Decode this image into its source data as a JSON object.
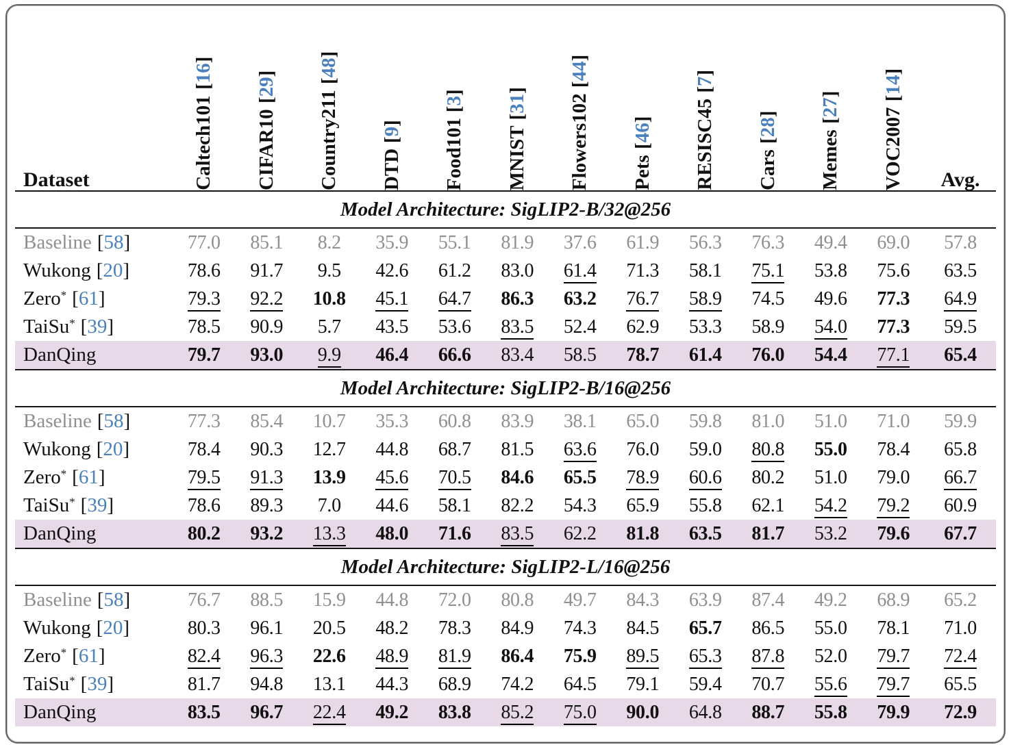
{
  "colors": {
    "citation_blue": "#4a80bb",
    "muted_gray": "#8f8f8f",
    "highlight_pink": "#e8d9e8",
    "rule_black": "#151515",
    "border_gray": "#5f5f5f"
  },
  "punctuation": {
    "cite_open": "[",
    "cite_close": "]"
  },
  "header": {
    "dataset_label": "Dataset",
    "avg_label": "Avg.",
    "columns": [
      {
        "name": "Caltech101",
        "cite": "16"
      },
      {
        "name": "CIFAR10",
        "cite": "29"
      },
      {
        "name": "Country211",
        "cite": "48"
      },
      {
        "name": "DTD",
        "cite": "9"
      },
      {
        "name": "Food101",
        "cite": "3"
      },
      {
        "name": "MNIST",
        "cite": "31"
      },
      {
        "name": "Flowers102",
        "cite": "44"
      },
      {
        "name": "Pets",
        "cite": "46"
      },
      {
        "name": "RESISC45",
        "cite": "7"
      },
      {
        "name": "Cars",
        "cite": "28"
      },
      {
        "name": "Memes",
        "cite": "27"
      },
      {
        "name": "VOC2007",
        "cite": "14"
      }
    ]
  },
  "sections": [
    {
      "title": "Model Architecture: SigLIP2-B/32@256",
      "rows": [
        {
          "label": "Baseline",
          "cite": "58",
          "muted": true,
          "values": [
            {
              "v": "77.0"
            },
            {
              "v": "85.1"
            },
            {
              "v": "8.2"
            },
            {
              "v": "35.9"
            },
            {
              "v": "55.1"
            },
            {
              "v": "81.9"
            },
            {
              "v": "37.6"
            },
            {
              "v": "61.9"
            },
            {
              "v": "56.3"
            },
            {
              "v": "76.3"
            },
            {
              "v": "49.4"
            },
            {
              "v": "69.0"
            },
            {
              "v": "57.8"
            }
          ]
        },
        {
          "label": "Wukong",
          "cite": "20",
          "values": [
            {
              "v": "78.6"
            },
            {
              "v": "91.7"
            },
            {
              "v": "9.5"
            },
            {
              "v": "42.6"
            },
            {
              "v": "61.2"
            },
            {
              "v": "83.0"
            },
            {
              "v": "61.4",
              "f": "u"
            },
            {
              "v": "71.3"
            },
            {
              "v": "58.1"
            },
            {
              "v": "75.1",
              "f": "u"
            },
            {
              "v": "53.8"
            },
            {
              "v": "75.6"
            },
            {
              "v": "63.5"
            }
          ]
        },
        {
          "label": "Zero",
          "sup": "*",
          "cite": "61",
          "values": [
            {
              "v": "79.3",
              "f": "u"
            },
            {
              "v": "92.2",
              "f": "u"
            },
            {
              "v": "10.8",
              "f": "b"
            },
            {
              "v": "45.1",
              "f": "u"
            },
            {
              "v": "64.7",
              "f": "u"
            },
            {
              "v": "86.3",
              "f": "b"
            },
            {
              "v": "63.2",
              "f": "b"
            },
            {
              "v": "76.7",
              "f": "u"
            },
            {
              "v": "58.9",
              "f": "u"
            },
            {
              "v": "74.5"
            },
            {
              "v": "49.6"
            },
            {
              "v": "77.3",
              "f": "b"
            },
            {
              "v": "64.9",
              "f": "u"
            }
          ]
        },
        {
          "label": "TaiSu",
          "sup": "*",
          "cite": "39",
          "values": [
            {
              "v": "78.5"
            },
            {
              "v": "90.9"
            },
            {
              "v": "5.7"
            },
            {
              "v": "43.5"
            },
            {
              "v": "53.6"
            },
            {
              "v": "83.5",
              "f": "u"
            },
            {
              "v": "52.4"
            },
            {
              "v": "62.9"
            },
            {
              "v": "53.3"
            },
            {
              "v": "58.9"
            },
            {
              "v": "54.0",
              "f": "u"
            },
            {
              "v": "77.3",
              "f": "b"
            },
            {
              "v": "59.5"
            }
          ]
        },
        {
          "label": "DanQing",
          "highlight": true,
          "values": [
            {
              "v": "79.7",
              "f": "b"
            },
            {
              "v": "93.0",
              "f": "b"
            },
            {
              "v": "9.9",
              "f": "u"
            },
            {
              "v": "46.4",
              "f": "b"
            },
            {
              "v": "66.6",
              "f": "b"
            },
            {
              "v": "83.4"
            },
            {
              "v": "58.5"
            },
            {
              "v": "78.7",
              "f": "b"
            },
            {
              "v": "61.4",
              "f": "b"
            },
            {
              "v": "76.0",
              "f": "b"
            },
            {
              "v": "54.4",
              "f": "b"
            },
            {
              "v": "77.1",
              "f": "u"
            },
            {
              "v": "65.4",
              "f": "b"
            }
          ]
        }
      ]
    },
    {
      "title": "Model Architecture: SigLIP2-B/16@256",
      "rows": [
        {
          "label": "Baseline",
          "cite": "58",
          "muted": true,
          "values": [
            {
              "v": "77.3"
            },
            {
              "v": "85.4"
            },
            {
              "v": "10.7"
            },
            {
              "v": "35.3"
            },
            {
              "v": "60.8"
            },
            {
              "v": "83.9"
            },
            {
              "v": "38.1"
            },
            {
              "v": "65.0"
            },
            {
              "v": "59.8"
            },
            {
              "v": "81.0"
            },
            {
              "v": "51.0"
            },
            {
              "v": "71.0"
            },
            {
              "v": "59.9"
            }
          ]
        },
        {
          "label": "Wukong",
          "cite": "20",
          "values": [
            {
              "v": "78.4"
            },
            {
              "v": "90.3"
            },
            {
              "v": "12.7"
            },
            {
              "v": "44.8"
            },
            {
              "v": "68.7"
            },
            {
              "v": "81.5"
            },
            {
              "v": "63.6",
              "f": "u"
            },
            {
              "v": "76.0"
            },
            {
              "v": "59.0"
            },
            {
              "v": "80.8",
              "f": "u"
            },
            {
              "v": "55.0",
              "f": "b"
            },
            {
              "v": "78.4"
            },
            {
              "v": "65.8"
            }
          ]
        },
        {
          "label": "Zero",
          "sup": "*",
          "cite": "61",
          "values": [
            {
              "v": "79.5",
              "f": "u"
            },
            {
              "v": "91.3",
              "f": "u"
            },
            {
              "v": "13.9",
              "f": "b"
            },
            {
              "v": "45.6",
              "f": "u"
            },
            {
              "v": "70.5",
              "f": "u"
            },
            {
              "v": "84.6",
              "f": "b"
            },
            {
              "v": "65.5",
              "f": "b"
            },
            {
              "v": "78.9",
              "f": "u"
            },
            {
              "v": "60.6",
              "f": "u"
            },
            {
              "v": "80.2"
            },
            {
              "v": "51.0"
            },
            {
              "v": "79.0"
            },
            {
              "v": "66.7",
              "f": "u"
            }
          ]
        },
        {
          "label": "TaiSu",
          "sup": "*",
          "cite": "39",
          "values": [
            {
              "v": "78.6"
            },
            {
              "v": "89.3"
            },
            {
              "v": "7.0"
            },
            {
              "v": "44.6"
            },
            {
              "v": "58.1"
            },
            {
              "v": "82.2"
            },
            {
              "v": "54.3"
            },
            {
              "v": "65.9"
            },
            {
              "v": "55.8"
            },
            {
              "v": "62.1"
            },
            {
              "v": "54.2",
              "f": "u"
            },
            {
              "v": "79.2",
              "f": "u"
            },
            {
              "v": "60.9"
            }
          ]
        },
        {
          "label": "DanQing",
          "highlight": true,
          "values": [
            {
              "v": "80.2",
              "f": "b"
            },
            {
              "v": "93.2",
              "f": "b"
            },
            {
              "v": "13.3",
              "f": "u"
            },
            {
              "v": "48.0",
              "f": "b"
            },
            {
              "v": "71.6",
              "f": "b"
            },
            {
              "v": "83.5",
              "f": "u"
            },
            {
              "v": "62.2"
            },
            {
              "v": "81.8",
              "f": "b"
            },
            {
              "v": "63.5",
              "f": "b"
            },
            {
              "v": "81.7",
              "f": "b"
            },
            {
              "v": "53.2"
            },
            {
              "v": "79.6",
              "f": "b"
            },
            {
              "v": "67.7",
              "f": "b"
            }
          ]
        }
      ]
    },
    {
      "title": "Model Architecture: SigLIP2-L/16@256",
      "rows": [
        {
          "label": "Baseline",
          "cite": "58",
          "muted": true,
          "values": [
            {
              "v": "76.7"
            },
            {
              "v": "88.5"
            },
            {
              "v": "15.9"
            },
            {
              "v": "44.8"
            },
            {
              "v": "72.0"
            },
            {
              "v": "80.8"
            },
            {
              "v": "49.7"
            },
            {
              "v": "84.3"
            },
            {
              "v": "63.9"
            },
            {
              "v": "87.4"
            },
            {
              "v": "49.2"
            },
            {
              "v": "68.9"
            },
            {
              "v": "65.2"
            }
          ]
        },
        {
          "label": "Wukong",
          "cite": "20",
          "values": [
            {
              "v": "80.3"
            },
            {
              "v": "96.1"
            },
            {
              "v": "20.5"
            },
            {
              "v": "48.2"
            },
            {
              "v": "78.3"
            },
            {
              "v": "84.9"
            },
            {
              "v": "74.3"
            },
            {
              "v": "84.5"
            },
            {
              "v": "65.7",
              "f": "b"
            },
            {
              "v": "86.5"
            },
            {
              "v": "55.0"
            },
            {
              "v": "78.1"
            },
            {
              "v": "71.0"
            }
          ]
        },
        {
          "label": "Zero",
          "sup": "*",
          "cite": "61",
          "values": [
            {
              "v": "82.4",
              "f": "u"
            },
            {
              "v": "96.3",
              "f": "u"
            },
            {
              "v": "22.6",
              "f": "b"
            },
            {
              "v": "48.9",
              "f": "u"
            },
            {
              "v": "81.9",
              "f": "u"
            },
            {
              "v": "86.4",
              "f": "b"
            },
            {
              "v": "75.9",
              "f": "b"
            },
            {
              "v": "89.5",
              "f": "u"
            },
            {
              "v": "65.3",
              "f": "u"
            },
            {
              "v": "87.8",
              "f": "u"
            },
            {
              "v": "52.0"
            },
            {
              "v": "79.7",
              "f": "u"
            },
            {
              "v": "72.4",
              "f": "u"
            }
          ]
        },
        {
          "label": "TaiSu",
          "sup": "*",
          "cite": "39",
          "values": [
            {
              "v": "81.7"
            },
            {
              "v": "94.8"
            },
            {
              "v": "13.1"
            },
            {
              "v": "44.3"
            },
            {
              "v": "68.9"
            },
            {
              "v": "74.2"
            },
            {
              "v": "64.5"
            },
            {
              "v": "79.1"
            },
            {
              "v": "59.4"
            },
            {
              "v": "70.7"
            },
            {
              "v": "55.6",
              "f": "u"
            },
            {
              "v": "79.7",
              "f": "u"
            },
            {
              "v": "65.5"
            }
          ]
        },
        {
          "label": "DanQing",
          "highlight": true,
          "values": [
            {
              "v": "83.5",
              "f": "b"
            },
            {
              "v": "96.7",
              "f": "b"
            },
            {
              "v": "22.4",
              "f": "u"
            },
            {
              "v": "49.2",
              "f": "b"
            },
            {
              "v": "83.8",
              "f": "b"
            },
            {
              "v": "85.2",
              "f": "u"
            },
            {
              "v": "75.0",
              "f": "u"
            },
            {
              "v": "90.0",
              "f": "b"
            },
            {
              "v": "64.8"
            },
            {
              "v": "88.7",
              "f": "b"
            },
            {
              "v": "55.8",
              "f": "b"
            },
            {
              "v": "79.9",
              "f": "b"
            },
            {
              "v": "72.9",
              "f": "b"
            }
          ]
        }
      ]
    }
  ]
}
